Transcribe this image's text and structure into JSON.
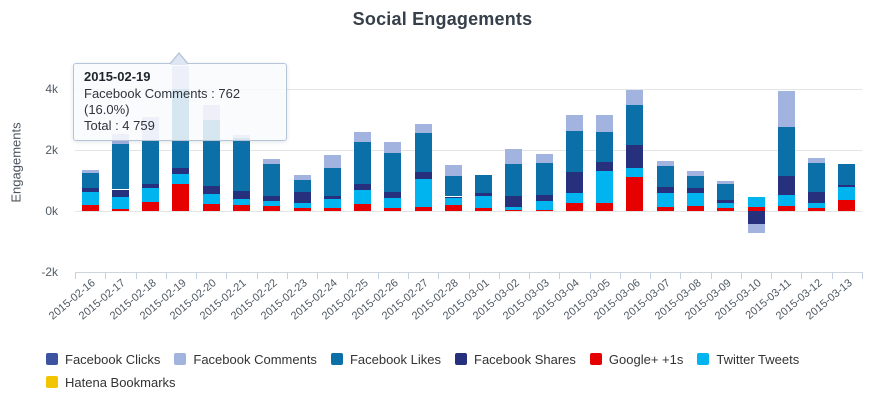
{
  "page": {
    "title": "Social Engagements"
  },
  "tooltip": {
    "title": "2015-02-19",
    "series_line": "Facebook Comments : 762 (16.0%)",
    "total_line": "Total : 4 759"
  },
  "chart_data": {
    "type": "bar",
    "stacked": true,
    "title": "Social Engagements",
    "ylabel": "Engagements",
    "xlabel": "",
    "ylim": [
      -2000,
      5200
    ],
    "grid": true,
    "legend_position": "bottom",
    "yticks": [
      {
        "value": 4000,
        "label": "4k"
      },
      {
        "value": 2000,
        "label": "2k"
      },
      {
        "value": 0,
        "label": "0k"
      },
      {
        "value": -2000,
        "label": "-2k"
      }
    ],
    "categories": [
      "2015-02-16",
      "2015-02-17",
      "2015-02-18",
      "2015-02-19",
      "2015-02-20",
      "2015-02-21",
      "2015-02-22",
      "2015-02-23",
      "2015-02-24",
      "2015-02-25",
      "2015-02-26",
      "2015-02-27",
      "2015-02-28",
      "2015-03-01",
      "2015-03-02",
      "2015-03-03",
      "2015-03-04",
      "2015-03-05",
      "2015-03-06",
      "2015-03-07",
      "2015-03-08",
      "2015-03-09",
      "2015-03-10",
      "2015-03-11",
      "2015-03-12",
      "2015-03-13"
    ],
    "series": [
      {
        "name": "Google+ +1s",
        "color": "#e60000",
        "values": [
          200,
          75,
          300,
          887,
          220,
          190,
          160,
          85,
          85,
          230,
          85,
          125,
          210,
          85,
          30,
          40,
          250,
          270,
          1120,
          135,
          150,
          100,
          130,
          160,
          105,
          370
        ]
      },
      {
        "name": "Twitter Tweets",
        "color": "#00b4f0",
        "values": [
          430,
          400,
          450,
          320,
          330,
          210,
          180,
          180,
          315,
          455,
          340,
          930,
          210,
          410,
          95,
          275,
          330,
          1040,
          300,
          440,
          440,
          150,
          330,
          370,
          160,
          420
        ]
      },
      {
        "name": "Facebook Shares",
        "color": "#26307c",
        "values": [
          130,
          230,
          140,
          190,
          270,
          260,
          140,
          350,
          105,
          210,
          210,
          210,
          55,
          105,
          370,
          210,
          700,
          305,
          740,
          220,
          150,
          100,
          -420,
          630,
          370,
          55
        ]
      },
      {
        "name": "Facebook Likes",
        "color": "#0b70a8",
        "values": [
          480,
          1480,
          1450,
          2600,
          2170,
          1720,
          1050,
          390,
          915,
          1370,
          1265,
          1285,
          665,
          580,
          1030,
          1050,
          1330,
          985,
          1320,
          685,
          400,
          550,
          0,
          1580,
          950,
          685
        ]
      },
      {
        "name": "Facebook Comments",
        "color": "#a2b3e0",
        "values": [
          115,
          330,
          750,
          762,
          490,
          110,
          160,
          180,
          420,
          315,
          370,
          295,
          360,
          0,
          495,
          280,
          550,
          550,
          480,
          160,
          160,
          90,
          -300,
          1210,
          160,
          0
        ]
      }
    ],
    "highlighted_category": "2015-02-19",
    "highlighted_total": "4 759",
    "legend": [
      {
        "label": "Facebook Clicks",
        "color": "#3c53a0"
      },
      {
        "label": "Facebook Comments",
        "color": "#a2b3e0"
      },
      {
        "label": "Facebook Likes",
        "color": "#0b70a8"
      },
      {
        "label": "Facebook Shares",
        "color": "#26307c"
      },
      {
        "label": "Google+ +1s",
        "color": "#e60000"
      },
      {
        "label": "Twitter Tweets",
        "color": "#00b4f0"
      },
      {
        "label": "Hatena Bookmarks",
        "color": "#f2c500"
      }
    ]
  }
}
